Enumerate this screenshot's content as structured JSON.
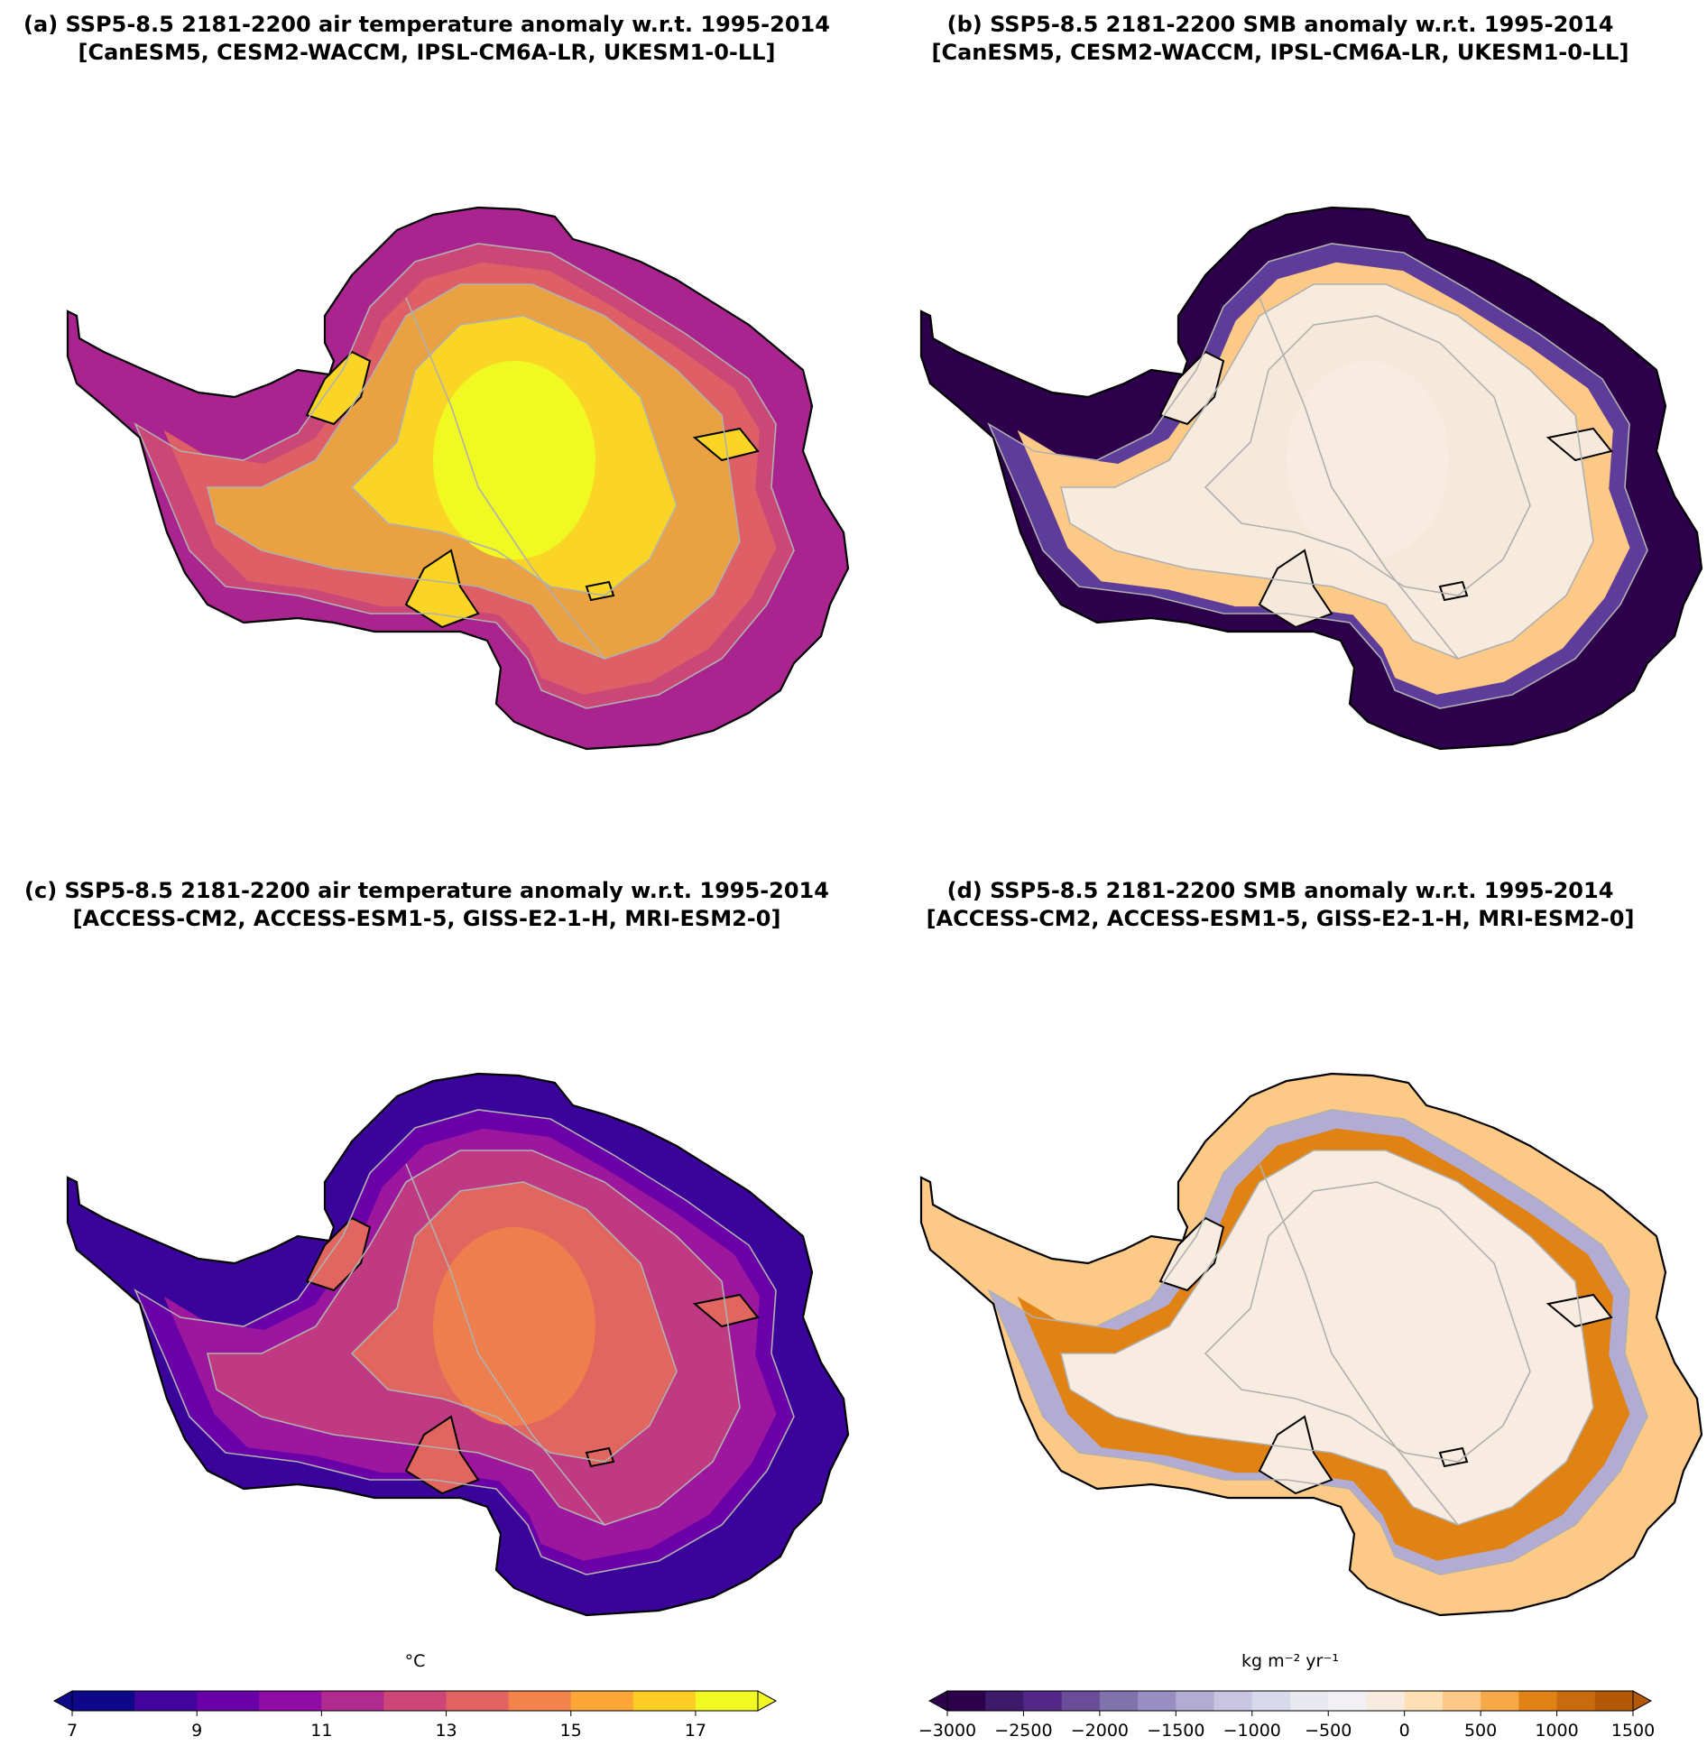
{
  "panels": [
    {
      "id": "a",
      "title_line1": "(a) SSP5-8.5 2181-2200 air temperature anomaly w.r.t. 1995-2014",
      "title_line2": "[CanESM5, CESM2-WACCM, IPSL-CM6A-LR, UKESM1-0-LL]",
      "variable": "air temperature anomaly",
      "colormap": "plasma",
      "fill_colors": [
        "#e9a141",
        "#fbd525",
        "#f0f921"
      ],
      "coast_colors": [
        "#a9248f",
        "#cb4778",
        "#de5f65"
      ]
    },
    {
      "id": "b",
      "title_line1": "(b) SSP5-8.5 2181-2200 SMB anomaly w.r.t. 1995-2014",
      "title_line2": "[CanESM5, CESM2-WACCM, IPSL-CM6A-LR, UKESM1-0-LL]",
      "variable": "SMB anomaly",
      "colormap": "PuOr_r",
      "fill_colors": [
        "#f7ebdd",
        "#f6e9db",
        "#f7ecdf"
      ],
      "coast_colors": [
        "#2d004b",
        "#5e3c99",
        "#fdc986"
      ]
    },
    {
      "id": "c",
      "title_line1": "(c) SSP5-8.5 2181-2200 air temperature anomaly w.r.t. 1995-2014",
      "title_line2": "[ACCESS-CM2, ACCESS-ESM1-5, GISS-E2-1-H, MRI-ESM2-0]",
      "variable": "air temperature anomaly",
      "colormap": "plasma",
      "fill_colors": [
        "#c03a83",
        "#e0665f",
        "#ef7e4f"
      ],
      "coast_colors": [
        "#3a049a",
        "#6a00a8",
        "#9c179e"
      ]
    },
    {
      "id": "d",
      "title_line1": "(d) SSP5-8.5 2181-2200 SMB anomaly w.r.t. 1995-2014",
      "title_line2": "[ACCESS-CM2, ACCESS-ESM1-5, GISS-E2-1-H, MRI-ESM2-0]",
      "variable": "SMB anomaly",
      "colormap": "PuOr_r",
      "fill_colors": [
        "#f7ecdf",
        "#f7ecdf",
        "#f7ecdf"
      ],
      "coast_colors": [
        "#fdc986",
        "#b2abd2",
        "#e08214"
      ]
    }
  ],
  "colorbars": [
    {
      "id": "temperature",
      "unit": "°C",
      "ticks": [
        "7",
        "9",
        "11",
        "13",
        "15",
        "17"
      ],
      "tick_values": [
        7,
        9,
        11,
        13,
        15,
        17
      ],
      "range": [
        7,
        18
      ],
      "extend": "both",
      "colors": [
        "#0d0887",
        "#41049d",
        "#6a00a8",
        "#8f0da4",
        "#b12a90",
        "#cc4778",
        "#e16462",
        "#f2844b",
        "#fca636",
        "#fcce25",
        "#f0f921"
      ]
    },
    {
      "id": "smb",
      "unit": "kg m⁻² yr⁻¹",
      "ticks": [
        "−3000",
        "−2500",
        "−2000",
        "−1500",
        "−1000",
        "−500",
        "0",
        "500",
        "1000",
        "1500"
      ],
      "tick_values": [
        -3000,
        -2500,
        -2000,
        -1500,
        -1000,
        -500,
        0,
        500,
        1000,
        1500
      ],
      "range": [
        -3000,
        1500
      ],
      "extend": "both",
      "colors": [
        "#2d004b",
        "#3e1a6b",
        "#542788",
        "#6a4c99",
        "#8073ac",
        "#998ec3",
        "#b2abd2",
        "#c9c5e0",
        "#d8daeb",
        "#e8e8f1",
        "#f2f0f4",
        "#f7ecdf",
        "#fee0b6",
        "#fdc986",
        "#f7a848",
        "#e08214",
        "#c86b0e",
        "#b35806"
      ]
    }
  ]
}
